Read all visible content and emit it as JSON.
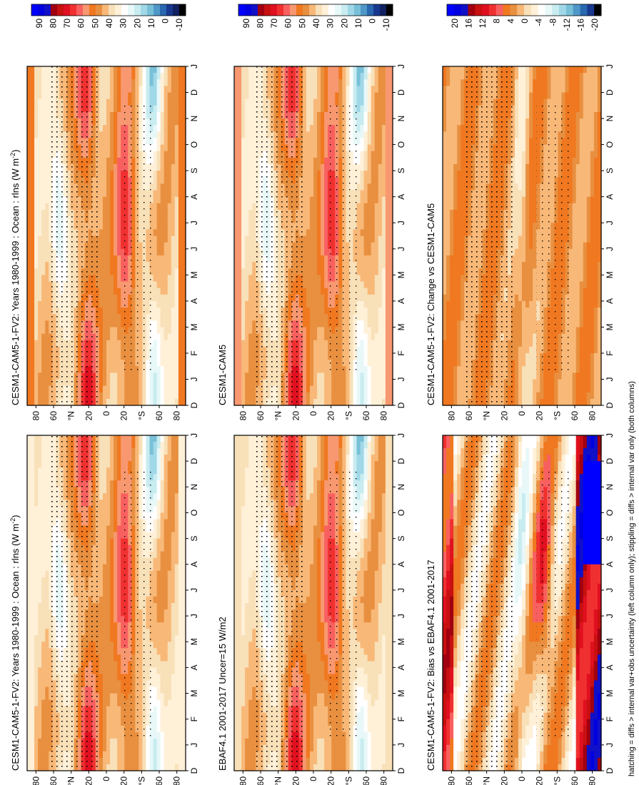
{
  "figure": {
    "footnote": "hatching = diffs > internal var+obs uncertainty (left column only); stippling = diffs > internal var only (both columns)",
    "month_ticks": [
      "D",
      "J",
      "F",
      "M",
      "A",
      "M",
      "J",
      "J",
      "A",
      "S",
      "O",
      "N",
      "D",
      "J"
    ],
    "lat_ticks": [
      "80",
      "60",
      "°N",
      "20",
      "0",
      "20",
      "°S",
      "60",
      "80"
    ]
  },
  "colors": {
    "abs_scale": [
      "#0000ff",
      "#0000e0",
      "#1010c8",
      "#a00010",
      "#c81010",
      "#e01020",
      "#f03030",
      "#f86060",
      "#f89870",
      "#f07820",
      "#e89040",
      "#f8b878",
      "#f8e0b8",
      "#fff0d8",
      "#ffffff",
      "#e8f8f8",
      "#c8ecf0",
      "#a0d8e8",
      "#78c0d8",
      "#4f98c8",
      "#2868b0",
      "#183890",
      "#102060",
      "#000000"
    ],
    "diff_scale": [
      "#0000ff",
      "#0000e0",
      "#1010c8",
      "#a00010",
      "#c81010",
      "#e01020",
      "#f03030",
      "#f86060",
      "#f07820",
      "#e89040",
      "#f8b878",
      "#f8e0b8",
      "#fff0d8",
      "#ffffff",
      "#e8f8f8",
      "#c8ecf0",
      "#a0d8e8",
      "#78c0d8",
      "#4f98c8",
      "#2868b0",
      "#183890",
      "#000000"
    ]
  },
  "chart_data": [
    {
      "type": "heatmap",
      "title": "CESM1-CAM5-1-FV2: Years 1980-1999 : Ocean : rlns (W m",
      "title_sup": "-2",
      "title_close": ")",
      "x": "month (D..J)",
      "y": "latitude 90S..90N",
      "colorbar_labels": [
        "90",
        "80",
        "70",
        "60",
        "50",
        "40",
        "30",
        "20",
        "10",
        "0",
        "-10"
      ],
      "field": "model_abs_left"
    },
    {
      "type": "heatmap",
      "title": "EBAF4.1 2001-2017 Uncer=15 W/m2",
      "colorbar_labels": [
        "90",
        "80",
        "70",
        "60",
        "50",
        "40",
        "30",
        "20",
        "10",
        "0",
        "-10"
      ],
      "field": "obs"
    },
    {
      "type": "heatmap",
      "title": "CESM1-CAM5-1-FV2: Bias vs EBAF4.1 2001-2017",
      "colorbar_labels": [
        "20",
        "16",
        "12",
        "8",
        "4",
        "0",
        "-4",
        "-8",
        "-12",
        "-16",
        "-20"
      ],
      "field": "bias"
    },
    {
      "type": "heatmap",
      "title": "CESM1-CAM5-1-FV2: Years 1980-1999 : Ocean : rlns (W m",
      "title_sup": "-2",
      "title_close": ")",
      "colorbar_labels": [
        "90",
        "80",
        "70",
        "60",
        "50",
        "40",
        "30",
        "20",
        "10",
        "0",
        "-10"
      ],
      "field": "model_abs_right"
    },
    {
      "type": "heatmap",
      "title": "CESM1-CAM5",
      "colorbar_labels": [
        "90",
        "80",
        "70",
        "60",
        "50",
        "40",
        "30",
        "20",
        "10",
        "0",
        "-10"
      ],
      "field": "ref_model"
    },
    {
      "type": "heatmap",
      "title": "CESM1-CAM5-1-FV2: Change vs CESM1-CAM5",
      "colorbar_labels": [
        "20",
        "16",
        "12",
        "8",
        "4",
        "0",
        "-4",
        "-8",
        "-12",
        "-16",
        "-20"
      ],
      "field": "change"
    }
  ]
}
